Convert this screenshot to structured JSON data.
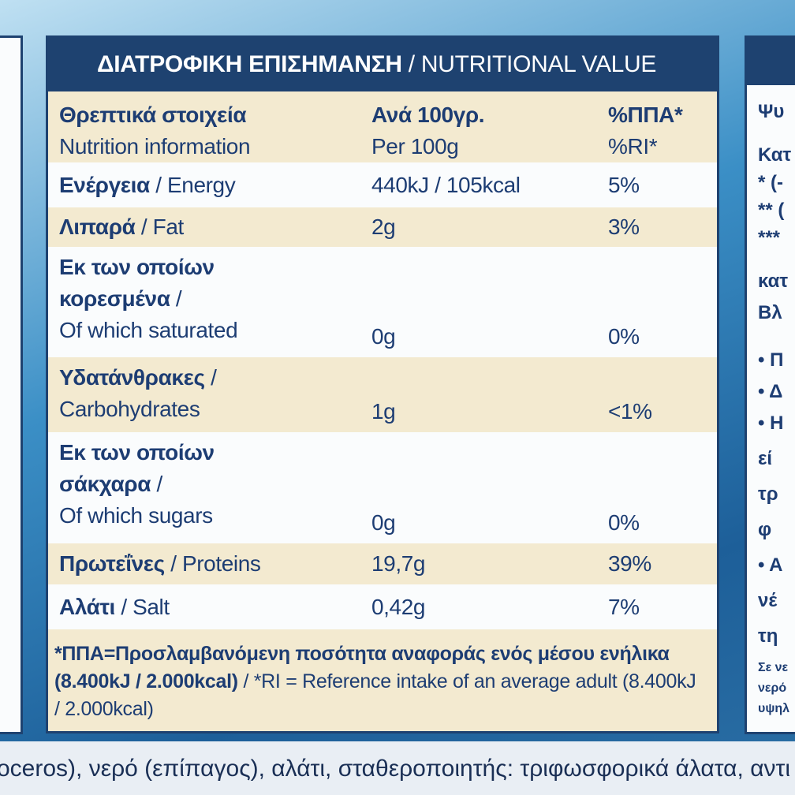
{
  "header": {
    "greek": "ΔΙΑΤΡΟΦΙΚΗ ΕΠΙΣΗΜΑΝΣΗ",
    "english": "/ NUTRITIONAL VALUE"
  },
  "table": {
    "head": {
      "greek": "Θρεπτικά στοιχεία",
      "english": "Nutrition information",
      "per100_greek": "Ανά 100γρ.",
      "per100_english": "Per 100g",
      "ri_greek": "%ΠΠΑ*",
      "ri_english": "%RI*"
    },
    "rows": [
      {
        "greek": "Ενέργεια",
        "english": "/ Energy",
        "per100": "440kJ / 105kcal",
        "ri": "5%"
      },
      {
        "greek": "Λιπαρά",
        "english": "/ Fat",
        "per100": "2g",
        "ri": "3%"
      },
      {
        "greek": "Εκ των οποίων κορεσμένα",
        "sep": "/",
        "english": "Of which saturated",
        "per100": "0g",
        "ri": "0%"
      },
      {
        "greek": "Υδατάνθρακες",
        "sep": "/",
        "english": "Carbohydrates",
        "per100": "1g",
        "ri": "<1%"
      },
      {
        "greek": "Εκ των οποίων σάκχαρα",
        "sep": "/",
        "english": "Of which sugars",
        "per100": "0g",
        "ri": "0%"
      },
      {
        "greek": "Πρωτεΐνες",
        "english": "/ Proteins",
        "per100": "19,7g",
        "ri": "39%"
      },
      {
        "greek": "Αλάτι",
        "english": "/ Salt",
        "per100": "0,42g",
        "ri": "7%"
      }
    ],
    "footnote": {
      "greek": "*ΠΠΑ=Προσλαμβανόμενη ποσότητα αναφοράς ενός μέσου ενήλικα (8.400kJ / 2.000kcal)",
      "english": "/ *RI = Reference intake of an average adult (8.400kJ / 2.000kcal)"
    }
  },
  "right_panel": {
    "lines": [
      "Ψυ",
      "Κατ",
      "* (-",
      "** (",
      "***",
      "κατ",
      "Βλ",
      "• Π",
      "• Δ",
      "• Η",
      "εί",
      "τρ",
      "φ",
      "• Α",
      "νέ",
      "τη"
    ],
    "small": [
      "Σε νε",
      "νερό",
      "υψηλ"
    ]
  },
  "bottom_text": "oceros), νερό (επίπαγος), αλάτι, σταθεροποιητής: τριφωσφορικά άλατα, αντι"
}
